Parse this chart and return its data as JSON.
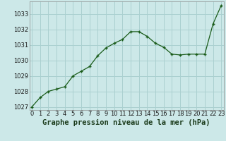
{
  "x": [
    0,
    1,
    2,
    3,
    4,
    5,
    6,
    7,
    8,
    9,
    10,
    11,
    12,
    13,
    14,
    15,
    16,
    17,
    18,
    19,
    20,
    21,
    22,
    23
  ],
  "y": [
    1027.0,
    1027.6,
    1028.0,
    1028.15,
    1028.3,
    1029.0,
    1029.3,
    1029.6,
    1030.3,
    1030.8,
    1031.1,
    1031.35,
    1031.85,
    1031.85,
    1031.55,
    1031.1,
    1030.85,
    1030.4,
    1030.35,
    1030.4,
    1030.4,
    1030.4,
    1032.35,
    1033.55
  ],
  "bg_color": "#cce8e8",
  "grid_color": "#aad0d0",
  "line_color": "#1a5c1a",
  "marker_color": "#1a5c1a",
  "ylim_min": 1026.8,
  "ylim_max": 1033.8,
  "yticks": [
    1027,
    1028,
    1029,
    1030,
    1031,
    1032,
    1033
  ],
  "xlim_min": -0.3,
  "xlim_max": 23.3,
  "xlabel": "Graphe pression niveau de la mer (hPa)",
  "xlabel_fontsize": 7.5,
  "tick_fontsize": 6.0
}
